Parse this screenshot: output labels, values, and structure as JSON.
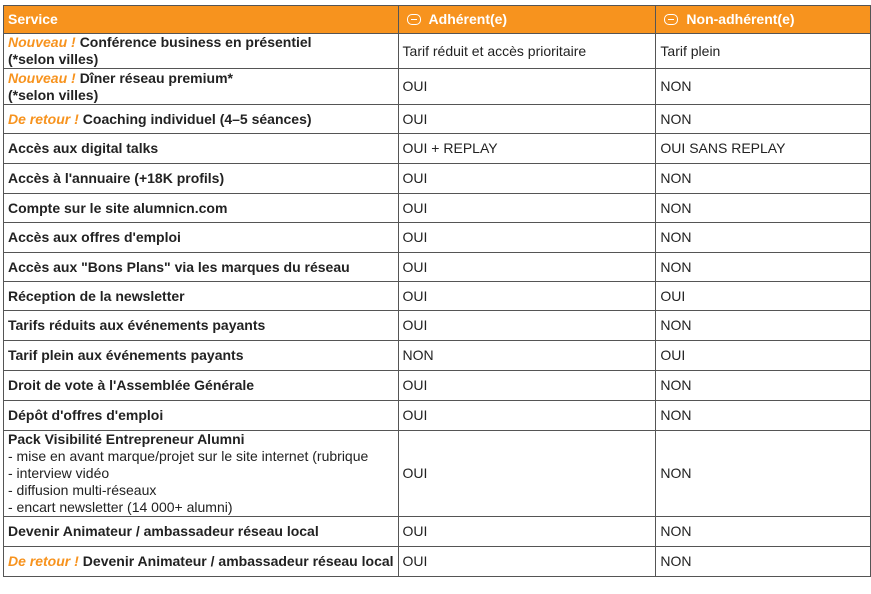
{
  "table": {
    "header": [
      "Service",
      "Adhérent(e)",
      "Non-adhérent(e)"
    ],
    "rows": [
      {
        "tag": "Nouveau !",
        "service": "Conférence business en présentiel",
        "note": "(*selon villes)",
        "member": "Tarif réduit et accès prioritaire",
        "non_member": "Tarif plein"
      },
      {
        "tag": "Nouveau !",
        "service": "Dîner réseau premium*",
        "note": "(*selon villes)",
        "member": "OUI",
        "non_member": "NON"
      },
      {
        "tag": "De retour !",
        "service": "Coaching individuel (4–5 séances)",
        "member": "OUI",
        "non_member": "NON"
      },
      {
        "service": "Accès aux digital talks",
        "member": "OUI + REPLAY",
        "non_member": "OUI SANS REPLAY"
      },
      {
        "service": "Accès à l'annuaire (+18K profils)",
        "member": "OUI",
        "non_member": "NON"
      },
      {
        "service": "Compte sur le site alumnicn.com",
        "member": "OUI",
        "non_member": "NON"
      },
      {
        "service": "Accès aux offres d'emploi",
        "member": "OUI",
        "non_member": "NON"
      },
      {
        "service": "Accès aux \"Bons Plans\" via les marques du réseau",
        "member": "OUI",
        "non_member": "NON"
      },
      {
        "service": "Réception de la newsletter",
        "member": "OUI",
        "non_member": "OUI"
      },
      {
        "service": "Tarifs réduits aux événements payants",
        "member": "OUI",
        "non_member": "NON"
      },
      {
        "service": "Tarif plein aux événements payants",
        "member": "NON",
        "non_member": "OUI"
      },
      {
        "service": "Droit de vote à l'Assemblée Générale",
        "member": "OUI",
        "non_member": "NON"
      },
      {
        "service": "Dépôt d'offres d'emploi",
        "member": "OUI",
        "non_member": "NON"
      },
      {
        "service": "Pack Visibilité Entrepreneur Alumni",
        "details": [
          "- mise en avant marque/projet sur le site internet (rubrique",
          "- interview vidéo",
          "- diffusion multi-réseaux",
          "- encart newsletter (14 000+ alumni)"
        ],
        "member": "OUI",
        "non_member": "NON"
      },
      {
        "service": "Devenir Animateur / ambassadeur réseau local",
        "member": "OUI",
        "non_member": "NON"
      },
      {
        "tag": "De retour !",
        "service": "Devenir Animateur / ambassadeur réseau local",
        "member": "OUI",
        "non_member": "NON"
      }
    ]
  }
}
